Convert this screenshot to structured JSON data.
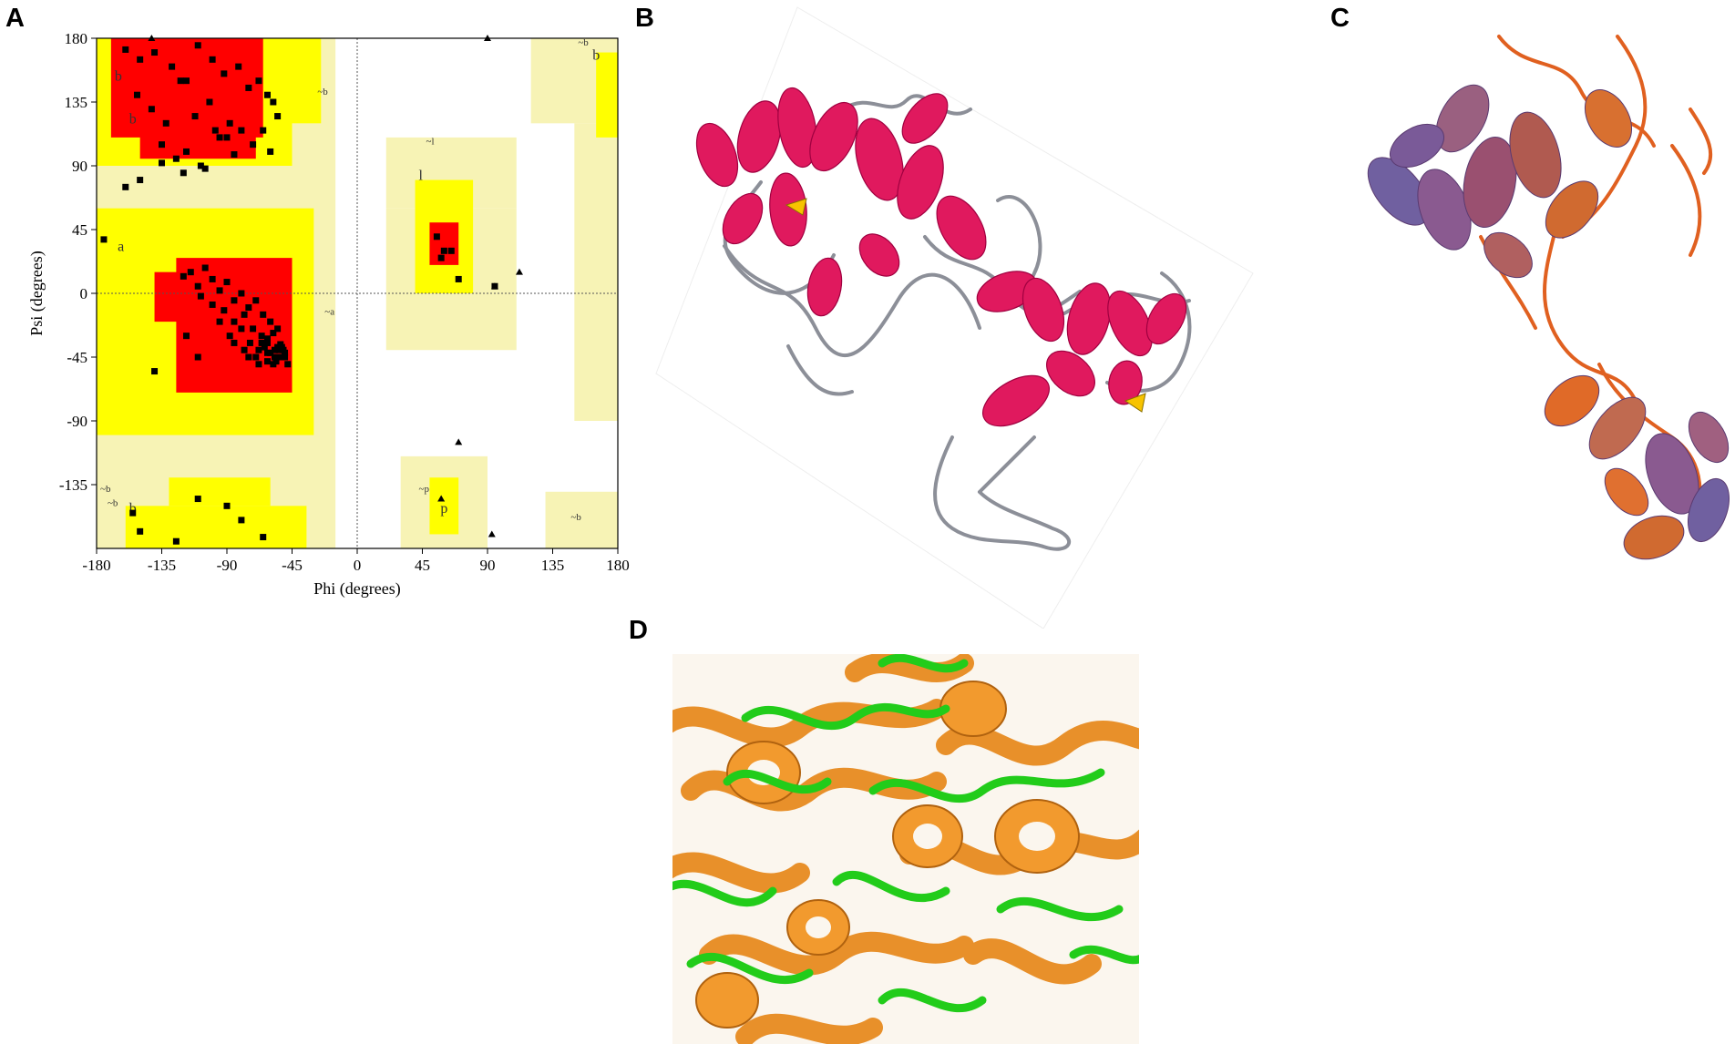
{
  "panels": {
    "a": {
      "letter": "A"
    },
    "b": {
      "letter": "B"
    },
    "c": {
      "letter": "C"
    },
    "d": {
      "letter": "D"
    }
  },
  "ramachandran": {
    "xlabel": "Phi (degrees)",
    "ylabel": "Psi (degrees)",
    "xticks": [
      "-180",
      "-135",
      "-90",
      "-45",
      "0",
      "45",
      "90",
      "135",
      "180"
    ],
    "yticks": [
      "180",
      "135",
      "90",
      "45",
      "0",
      "-45",
      "-90",
      "-135"
    ],
    "region_labels": [
      "b",
      "~b",
      "~b",
      "b",
      "b",
      "~b",
      "~l",
      "l",
      "a",
      "~a",
      "~b",
      "b",
      "~p",
      "p",
      "~b"
    ]
  },
  "chart_data": {
    "type": "scatter",
    "title": "",
    "xlabel": "Phi (degrees)",
    "ylabel": "Psi (degrees)",
    "xlim": [
      -180,
      180
    ],
    "ylim": [
      -180,
      180
    ],
    "grid": false,
    "regions": {
      "core": "#ff0000",
      "allowed": "#ffff00",
      "generous": "#f7f3b5",
      "disallowed": "#ffffff"
    },
    "series": [
      {
        "marker": "square",
        "x": [
          -160,
          -150,
          -140,
          -128,
          -118,
          -110,
          -100,
          -92,
          -82,
          -75,
          -68,
          -62,
          -58,
          -55,
          -152,
          -142,
          -132,
          -122,
          -112,
          -102,
          -95,
          -88,
          -80,
          -72,
          -65,
          -60,
          -135,
          -125,
          -118,
          -108,
          -98,
          -90,
          -85,
          -120,
          -135,
          -160,
          -150,
          -105,
          -175,
          -120,
          -115,
          -110,
          -105,
          -100,
          -95,
          -90,
          -85,
          -80,
          -75,
          -70,
          -65,
          -60,
          -55,
          -108,
          -100,
          -92,
          -85,
          -78,
          -72,
          -66,
          -62,
          -58,
          -54,
          -95,
          -88,
          -80,
          -74,
          -68,
          -62,
          -57,
          -52,
          -85,
          -78,
          -70,
          -64,
          -58,
          -53,
          -50,
          -75,
          -68,
          -62,
          -56,
          -51,
          -66,
          -60,
          -55,
          -50,
          -62,
          -57,
          -53,
          -48,
          -140,
          -118,
          -110,
          55,
          60,
          65,
          58,
          70,
          95,
          -155,
          -150,
          -125,
          -110,
          -90,
          -80,
          -65
        ],
        "y": [
          172,
          165,
          170,
          160,
          150,
          175,
          165,
          155,
          160,
          145,
          150,
          140,
          135,
          125,
          140,
          130,
          120,
          150,
          125,
          135,
          110,
          120,
          115,
          105,
          115,
          100,
          105,
          95,
          100,
          90,
          115,
          110,
          98,
          85,
          92,
          75,
          80,
          88,
          38,
          12,
          15,
          5,
          18,
          10,
          2,
          8,
          -5,
          0,
          -10,
          -5,
          -15,
          -20,
          -25,
          -2,
          -8,
          -12,
          -20,
          -15,
          -25,
          -30,
          -35,
          -28,
          -40,
          -20,
          -30,
          -25,
          -35,
          -40,
          -32,
          -45,
          -38,
          -35,
          -40,
          -45,
          -38,
          -50,
          -45,
          -42,
          -45,
          -50,
          -42,
          -48,
          -40,
          -35,
          -42,
          -38,
          -45,
          -48,
          -40,
          -36,
          -50,
          -55,
          -30,
          -45,
          40,
          30,
          30,
          25,
          10,
          5,
          -155,
          -168,
          -175,
          -145,
          -150,
          -160,
          -172
        ]
      },
      {
        "marker": "triangle",
        "x": [
          -142,
          90,
          112,
          95,
          58,
          70,
          93
        ],
        "y": [
          180,
          180,
          15,
          5,
          -145,
          -105,
          -170
        ]
      }
    ]
  }
}
